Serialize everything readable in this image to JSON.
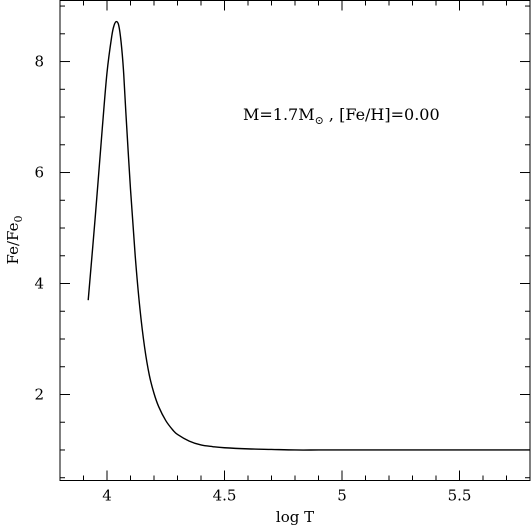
{
  "chart_data": {
    "type": "line",
    "xlabel": "log T",
    "ylabel_main": "Fe/Fe",
    "ylabel_sub": "0",
    "annotation": {
      "prefix": "M=1.7M",
      "sun_symbol": "⊙",
      "suffix": " , [Fe/H]=0.00"
    },
    "xlim": [
      3.8,
      5.8
    ],
    "ylim": [
      0.45,
      9.1
    ],
    "x_ticks": [
      4.0,
      4.5,
      5.0,
      5.5
    ],
    "x_tick_labels": [
      "4",
      "4.5",
      "5",
      "5.5"
    ],
    "y_ticks": [
      2,
      4,
      6,
      8
    ],
    "y_tick_labels": [
      "2",
      "4",
      "6",
      "8"
    ],
    "grid": false,
    "series": [
      {
        "x": [
          3.92,
          3.95,
          3.98,
          4.0,
          4.02,
          4.03,
          4.04,
          4.05,
          4.06,
          4.07,
          4.08,
          4.1,
          4.12,
          4.14,
          4.16,
          4.18,
          4.2,
          4.22,
          4.25,
          4.28,
          4.3,
          4.35,
          4.4,
          4.45,
          4.5,
          4.6,
          4.7,
          4.8,
          4.9,
          5.0,
          5.2,
          5.5,
          5.8
        ],
        "y": [
          3.7,
          5.2,
          6.8,
          7.8,
          8.45,
          8.65,
          8.72,
          8.65,
          8.35,
          7.85,
          7.1,
          5.7,
          4.5,
          3.55,
          2.85,
          2.35,
          2.02,
          1.78,
          1.53,
          1.36,
          1.28,
          1.16,
          1.09,
          1.06,
          1.04,
          1.02,
          1.01,
          1.0,
          1.0,
          1.0,
          1.0,
          1.0,
          1.0
        ]
      }
    ]
  }
}
